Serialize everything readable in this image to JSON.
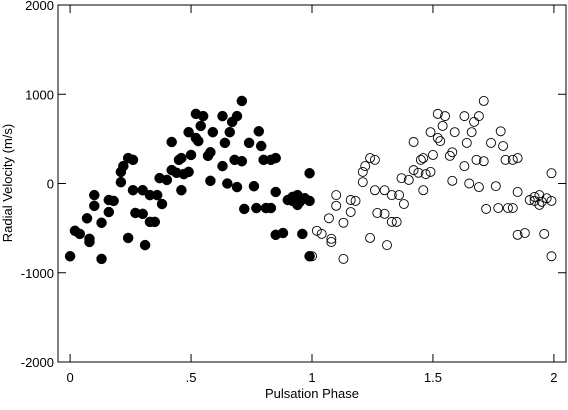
{
  "chart_data": {
    "type": "scatter",
    "xlabel": "Pulsation Phase",
    "ylabel": "Radial Velocity (m/s)",
    "xlim": [
      -0.05,
      2.05
    ],
    "ylim": [
      -2000,
      2000
    ],
    "xticks": [
      0,
      {
        "value": 0.5,
        "label": ".5"
      },
      1,
      1.5,
      2
    ],
    "yticks": [
      -2000,
      -1000,
      0,
      1000,
      2000
    ],
    "series": [
      {
        "marker": "filled",
        "color": "#000000",
        "x": [
          0.0,
          0.02,
          0.04,
          0.07,
          0.08,
          0.08,
          0.1,
          0.1,
          0.13,
          0.13,
          0.16,
          0.16,
          0.18,
          0.21,
          0.21,
          0.22,
          0.24,
          0.24,
          0.26,
          0.26,
          0.27,
          0.3,
          0.3,
          0.31,
          0.33,
          0.33,
          0.35,
          0.36,
          0.37,
          0.38,
          0.4,
          0.42,
          0.42,
          0.44,
          0.45,
          0.46,
          0.46,
          0.47,
          0.49,
          0.49,
          0.5,
          0.52,
          0.52,
          0.53,
          0.54,
          0.55,
          0.57,
          0.58,
          0.58,
          0.59,
          0.63,
          0.63,
          0.64,
          0.65,
          0.66,
          0.67,
          0.68,
          0.69,
          0.69,
          0.71,
          0.71,
          0.72,
          0.74,
          0.76,
          0.77,
          0.78,
          0.79,
          0.8,
          0.81,
          0.83,
          0.83,
          0.85,
          0.85,
          0.85,
          0.88,
          0.9,
          0.92,
          0.92,
          0.94,
          0.94,
          0.95,
          0.96,
          0.97,
          0.99,
          0.99,
          0.99
        ],
        "values": [
          -815,
          -530,
          -565,
          -390,
          -620,
          -655,
          -130,
          -250,
          -845,
          -440,
          -185,
          -320,
          -195,
          130,
          15,
          195,
          285,
          -610,
          265,
          -75,
          -330,
          -75,
          -340,
          -690,
          -130,
          -430,
          -430,
          -130,
          60,
          -230,
          40,
          465,
          150,
          120,
          265,
          285,
          -75,
          105,
          575,
          130,
          320,
          780,
          510,
          475,
          645,
          755,
          310,
          350,
          30,
          575,
          195,
          755,
          455,
          0,
          575,
          690,
          265,
          755,
          -40,
          925,
          250,
          -285,
          455,
          -30,
          -275,
          585,
          420,
          265,
          -275,
          -275,
          265,
          -95,
          285,
          -575,
          -555,
          -185,
          -195,
          -150,
          -240,
          -130,
          -205,
          -565,
          -165,
          -195,
          -815,
          115
        ]
      },
      {
        "marker": "open",
        "color": "#000000",
        "x": [
          1.0,
          1.02,
          1.04,
          1.07,
          1.08,
          1.08,
          1.1,
          1.1,
          1.13,
          1.13,
          1.16,
          1.16,
          1.18,
          1.21,
          1.21,
          1.22,
          1.24,
          1.24,
          1.26,
          1.26,
          1.27,
          1.3,
          1.3,
          1.31,
          1.33,
          1.33,
          1.35,
          1.36,
          1.37,
          1.38,
          1.4,
          1.42,
          1.42,
          1.44,
          1.45,
          1.46,
          1.46,
          1.47,
          1.49,
          1.49,
          1.5,
          1.52,
          1.52,
          1.53,
          1.54,
          1.55,
          1.57,
          1.58,
          1.58,
          1.59,
          1.63,
          1.63,
          1.64,
          1.65,
          1.66,
          1.67,
          1.68,
          1.69,
          1.69,
          1.71,
          1.71,
          1.72,
          1.74,
          1.76,
          1.77,
          1.78,
          1.79,
          1.8,
          1.81,
          1.83,
          1.83,
          1.85,
          1.85,
          1.85,
          1.88,
          1.9,
          1.92,
          1.92,
          1.94,
          1.94,
          1.95,
          1.96,
          1.97,
          1.99,
          1.99,
          1.99
        ],
        "values": [
          -815,
          -530,
          -565,
          -390,
          -620,
          -655,
          -130,
          -250,
          -845,
          -440,
          -185,
          -320,
          -195,
          130,
          15,
          195,
          285,
          -610,
          265,
          -75,
          -330,
          -75,
          -340,
          -690,
          -130,
          -430,
          -430,
          -130,
          60,
          -230,
          40,
          465,
          150,
          120,
          265,
          285,
          -75,
          105,
          575,
          130,
          320,
          780,
          510,
          475,
          645,
          755,
          310,
          350,
          30,
          575,
          195,
          755,
          455,
          0,
          575,
          690,
          265,
          755,
          -40,
          925,
          250,
          -285,
          455,
          -30,
          -275,
          585,
          420,
          265,
          -275,
          -275,
          265,
          -95,
          285,
          -575,
          -555,
          -185,
          -195,
          -150,
          -240,
          -130,
          -205,
          -565,
          -165,
          -195,
          -815,
          115
        ]
      }
    ]
  }
}
